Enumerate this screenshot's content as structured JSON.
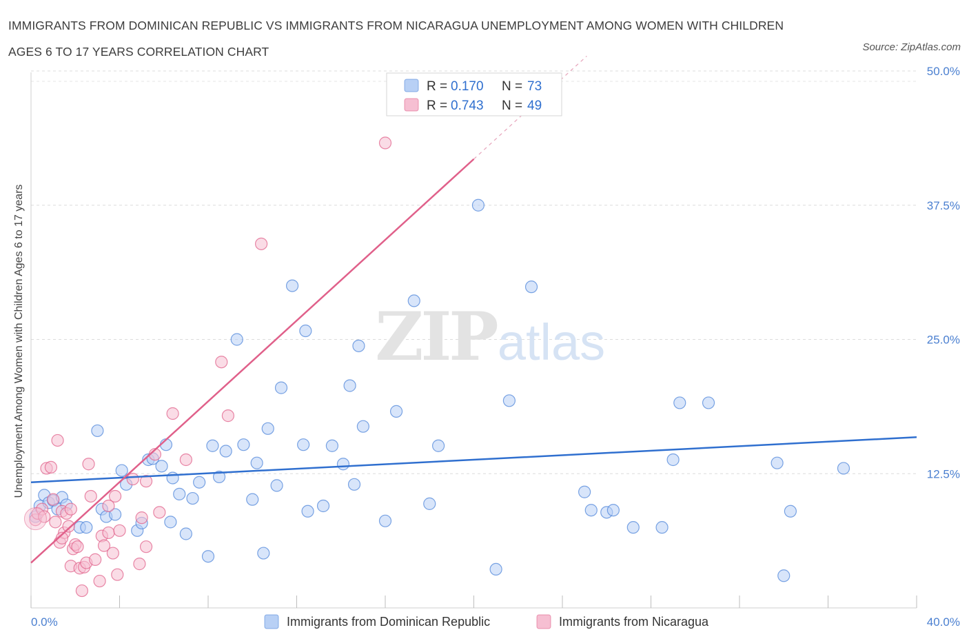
{
  "title": "IMMIGRANTS FROM DOMINICAN REPUBLIC VS IMMIGRANTS FROM NICARAGUA UNEMPLOYMENT AMONG WOMEN WITH CHILDREN AGES 6 TO 17 YEARS CORRELATION CHART",
  "source": "Source: ZipAtlas.com",
  "watermark": {
    "zip": "ZIP",
    "atlas": "atlas"
  },
  "colors": {
    "blue": "#4f86d9",
    "blue_fill": "#b8d0f5",
    "pink": "#e0608a",
    "pink_fill": "#f6bfd2",
    "axis_text": "#4a7fd0"
  },
  "legend": {
    "rows": [
      {
        "r_label": "R = ",
        "r_value": "0.170",
        "n_label": "N = ",
        "n_value": "73"
      },
      {
        "r_label": "R = ",
        "r_value": "0.743",
        "n_label": "N = ",
        "n_value": "49"
      }
    ]
  },
  "chart_data": {
    "type": "scatter",
    "xlabel": "",
    "ylabel": "Unemployment Among Women with Children Ages 6 to 17 years",
    "xlim": [
      0,
      40
    ],
    "ylim": [
      0,
      50
    ],
    "x_tick_labels": [
      "0.0%",
      "40.0%"
    ],
    "y_ticks": [
      12.5,
      25,
      37.5,
      50
    ],
    "y_tick_labels": [
      "12.5%",
      "25.0%",
      "37.5%",
      "50.0%"
    ],
    "grid": true,
    "legend_position": "top-center",
    "series": [
      {
        "name": "Immigrants from Dominican Republic",
        "color": "#4f86d9",
        "trend": {
          "x": [
            0,
            40
          ],
          "y": [
            11.7,
            15.9
          ]
        },
        "points": [
          [
            0.2,
            8.5
          ],
          [
            0.4,
            9.5
          ],
          [
            0.6,
            10.5
          ],
          [
            0.8,
            9.8
          ],
          [
            1.0,
            10.0
          ],
          [
            1.2,
            9.2
          ],
          [
            1.4,
            10.3
          ],
          [
            1.6,
            9.6
          ],
          [
            2.2,
            7.5
          ],
          [
            2.5,
            7.5
          ],
          [
            3.0,
            16.5
          ],
          [
            3.2,
            9.2
          ],
          [
            3.4,
            8.5
          ],
          [
            3.8,
            8.7
          ],
          [
            4.1,
            12.8
          ],
          [
            4.3,
            11.5
          ],
          [
            4.8,
            7.2
          ],
          [
            5.0,
            7.9
          ],
          [
            5.3,
            13.8
          ],
          [
            5.5,
            13.9
          ],
          [
            5.9,
            13.2
          ],
          [
            6.1,
            15.2
          ],
          [
            6.3,
            8.0
          ],
          [
            6.4,
            12.1
          ],
          [
            6.7,
            10.6
          ],
          [
            7.0,
            6.9
          ],
          [
            7.3,
            10.2
          ],
          [
            7.6,
            11.7
          ],
          [
            8.0,
            4.8
          ],
          [
            8.2,
            15.1
          ],
          [
            8.5,
            12.2
          ],
          [
            8.8,
            14.6
          ],
          [
            9.3,
            25.0
          ],
          [
            9.6,
            15.2
          ],
          [
            10.0,
            10.1
          ],
          [
            10.2,
            13.5
          ],
          [
            10.5,
            5.1
          ],
          [
            10.7,
            16.7
          ],
          [
            11.1,
            11.4
          ],
          [
            11.3,
            20.5
          ],
          [
            11.8,
            30.0
          ],
          [
            12.3,
            15.2
          ],
          [
            12.4,
            25.8
          ],
          [
            12.5,
            9.0
          ],
          [
            13.2,
            9.5
          ],
          [
            13.6,
            15.1
          ],
          [
            14.1,
            13.4
          ],
          [
            14.4,
            20.7
          ],
          [
            14.6,
            11.5
          ],
          [
            14.8,
            24.4
          ],
          [
            15.0,
            16.9
          ],
          [
            16.0,
            8.1
          ],
          [
            16.5,
            18.3
          ],
          [
            17.3,
            28.6
          ],
          [
            18.0,
            9.7
          ],
          [
            18.4,
            15.1
          ],
          [
            20.2,
            37.5
          ],
          [
            21.0,
            3.6
          ],
          [
            21.6,
            19.3
          ],
          [
            22.6,
            29.9
          ],
          [
            25.0,
            10.8
          ],
          [
            25.3,
            9.1
          ],
          [
            26.0,
            8.9
          ],
          [
            26.3,
            9.1
          ],
          [
            27.2,
            7.5
          ],
          [
            28.5,
            7.5
          ],
          [
            29.0,
            13.8
          ],
          [
            29.3,
            19.1
          ],
          [
            30.6,
            19.1
          ],
          [
            33.7,
            13.5
          ],
          [
            34.0,
            3.0
          ],
          [
            34.3,
            9.0
          ],
          [
            36.7,
            13.0
          ]
        ]
      },
      {
        "name": "Immigrants from Nicaragua",
        "color": "#e0608a",
        "trend": {
          "x": [
            0,
            20
          ],
          "y": [
            4.2,
            41.8
          ]
        },
        "points": [
          [
            0.2,
            8.2
          ],
          [
            0.3,
            8.8
          ],
          [
            0.5,
            9.2
          ],
          [
            0.6,
            8.5
          ],
          [
            0.7,
            13.0
          ],
          [
            0.9,
            13.1
          ],
          [
            1.0,
            10.1
          ],
          [
            1.2,
            15.6
          ],
          [
            1.3,
            6.1
          ],
          [
            1.4,
            9.0
          ],
          [
            1.5,
            7.0
          ],
          [
            1.6,
            8.8
          ],
          [
            1.7,
            7.6
          ],
          [
            1.8,
            9.2
          ],
          [
            1.8,
            3.9
          ],
          [
            1.9,
            5.5
          ],
          [
            2.0,
            5.9
          ],
          [
            2.1,
            5.7
          ],
          [
            2.2,
            3.7
          ],
          [
            2.3,
            1.6
          ],
          [
            2.4,
            3.8
          ],
          [
            2.5,
            4.2
          ],
          [
            2.6,
            13.4
          ],
          [
            2.7,
            10.4
          ],
          [
            2.9,
            4.5
          ],
          [
            3.1,
            2.5
          ],
          [
            3.2,
            6.7
          ],
          [
            3.3,
            5.8
          ],
          [
            3.5,
            7.0
          ],
          [
            3.5,
            9.5
          ],
          [
            3.7,
            5.1
          ],
          [
            3.8,
            10.4
          ],
          [
            3.9,
            3.1
          ],
          [
            4.0,
            7.2
          ],
          [
            4.6,
            12.0
          ],
          [
            4.9,
            4.1
          ],
          [
            5.0,
            8.4
          ],
          [
            5.2,
            5.7
          ],
          [
            5.2,
            11.8
          ],
          [
            5.6,
            14.3
          ],
          [
            5.8,
            8.9
          ],
          [
            6.4,
            18.1
          ],
          [
            7.0,
            13.8
          ],
          [
            8.6,
            22.9
          ],
          [
            8.9,
            17.9
          ],
          [
            10.4,
            33.9
          ],
          [
            16.0,
            43.3
          ],
          [
            1.4,
            6.5
          ],
          [
            1.1,
            8.0
          ]
        ]
      }
    ]
  }
}
